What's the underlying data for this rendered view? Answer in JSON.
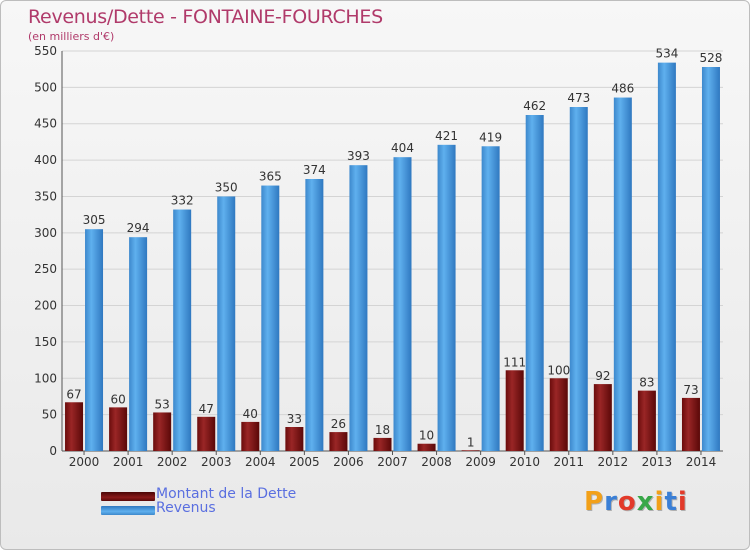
{
  "title": "Revenus/Dette - FONTAINE-FOURCHES",
  "subtitle": "(en milliers d'€)",
  "brand": {
    "text": "Proxiti",
    "colors": [
      "#f2a018",
      "#3a7fd6",
      "#e23a2a",
      "#38a848",
      "#f2a018",
      "#3a7fd6",
      "#e23a2a"
    ]
  },
  "colors": {
    "debt": "#7a1010",
    "revenue": "#4a9de0",
    "title": "#b03a6a",
    "legend_text": "#5a6fe0"
  },
  "chart_data": {
    "type": "bar",
    "title": "Revenus/Dette - FONTAINE-FOURCHES",
    "ylabel": "(en milliers d'€)",
    "categories": [
      "2000",
      "2001",
      "2002",
      "2003",
      "2004",
      "2005",
      "2006",
      "2007",
      "2008",
      "2009",
      "2010",
      "2011",
      "2012",
      "2013",
      "2014"
    ],
    "series": [
      {
        "name": "Montant de la Dette",
        "color": "#7a1010",
        "values": [
          67,
          60,
          53,
          47,
          40,
          33,
          26,
          18,
          10,
          1,
          111,
          100,
          92,
          83,
          73
        ]
      },
      {
        "name": "Revenus",
        "color": "#4a9de0",
        "values": [
          305,
          294,
          332,
          350,
          365,
          374,
          393,
          404,
          421,
          419,
          462,
          473,
          486,
          534,
          528
        ]
      }
    ],
    "ylim": [
      0,
      550
    ],
    "yticks": [
      0,
      50,
      100,
      150,
      200,
      250,
      300,
      350,
      400,
      450,
      500,
      550
    ],
    "grid": true,
    "legend_position": "bottom-left"
  }
}
